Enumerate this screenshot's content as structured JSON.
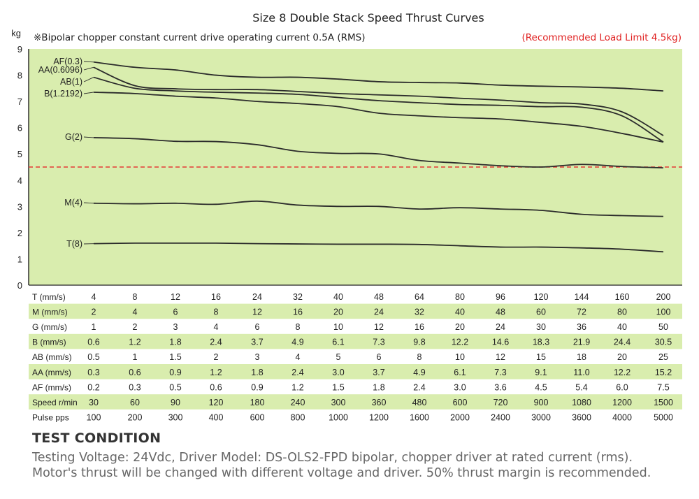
{
  "chart_data": {
    "type": "line",
    "title": "Size 8 Double Stack Speed Thrust Curves",
    "subtitle": "※Bipolar chopper constant current drive operating current 0.5A (RMS)",
    "ylabel": "kg",
    "ylim": [
      0,
      9
    ],
    "yticks": [
      0,
      1,
      2,
      3,
      4,
      5,
      6,
      7,
      8,
      9
    ],
    "recommended_limit": {
      "label": "(Recommended Load Limit 4.5kg)",
      "value": 4.5,
      "color": "#e53935"
    },
    "colors": {
      "plot_background": "#d9edae",
      "table_band": "#d9edae",
      "line": "#2b2b2b",
      "axis": "#222222"
    },
    "series": [
      {
        "name": "AF(0.3)",
        "values": [
          8.5,
          8.3,
          8.2,
          8.0,
          7.92,
          7.92,
          7.85,
          7.75,
          7.72,
          7.7,
          7.62,
          7.58,
          7.55,
          7.5,
          7.4
        ]
      },
      {
        "name": "AA(0.6096)",
        "values": [
          8.3,
          7.6,
          7.48,
          7.45,
          7.45,
          7.38,
          7.3,
          7.25,
          7.2,
          7.12,
          7.05,
          6.95,
          6.9,
          6.6,
          5.7
        ]
      },
      {
        "name": "AB(1)",
        "values": [
          7.92,
          7.5,
          7.4,
          7.35,
          7.32,
          7.27,
          7.15,
          7.03,
          6.95,
          6.88,
          6.85,
          6.8,
          6.78,
          6.45,
          5.45
        ]
      },
      {
        "name": "B(1.2192)",
        "values": [
          7.35,
          7.3,
          7.2,
          7.13,
          7.0,
          6.92,
          6.8,
          6.55,
          6.45,
          6.38,
          6.33,
          6.2,
          6.05,
          5.78,
          5.45
        ]
      },
      {
        "name": "G(2)",
        "values": [
          5.62,
          5.58,
          5.48,
          5.47,
          5.35,
          5.1,
          5.02,
          5.0,
          4.75,
          4.65,
          4.55,
          4.5,
          4.6,
          4.52,
          4.47
        ]
      },
      {
        "name": "M(4)",
        "values": [
          3.12,
          3.1,
          3.12,
          3.08,
          3.2,
          3.05,
          3.0,
          3.0,
          2.9,
          2.95,
          2.9,
          2.85,
          2.7,
          2.65,
          2.62
        ]
      },
      {
        "name": "T(8)",
        "values": [
          1.58,
          1.6,
          1.6,
          1.6,
          1.58,
          1.57,
          1.56,
          1.56,
          1.55,
          1.5,
          1.45,
          1.45,
          1.42,
          1.37,
          1.27
        ]
      }
    ],
    "table": {
      "rows": [
        {
          "label": "T (mm/s)",
          "values": [
            "4",
            "8",
            "12",
            "16",
            "24",
            "32",
            "40",
            "48",
            "64",
            "80",
            "96",
            "120",
            "144",
            "160",
            "200"
          ]
        },
        {
          "label": "M (mm/s)",
          "values": [
            "2",
            "4",
            "6",
            "8",
            "12",
            "16",
            "20",
            "24",
            "32",
            "40",
            "48",
            "60",
            "72",
            "80",
            "100"
          ]
        },
        {
          "label": "G (mm/s)",
          "values": [
            "1",
            "2",
            "3",
            "4",
            "6",
            "8",
            "10",
            "12",
            "16",
            "20",
            "24",
            "30",
            "36",
            "40",
            "50"
          ]
        },
        {
          "label": "B (mm/s)",
          "values": [
            "0.6",
            "1.2",
            "1.8",
            "2.4",
            "3.7",
            "4.9",
            "6.1",
            "7.3",
            "9.8",
            "12.2",
            "14.6",
            "18.3",
            "21.9",
            "24.4",
            "30.5"
          ]
        },
        {
          "label": "AB (mm/s)",
          "values": [
            "0.5",
            "1",
            "1.5",
            "2",
            "3",
            "4",
            "5",
            "6",
            "8",
            "10",
            "12",
            "15",
            "18",
            "20",
            "25"
          ]
        },
        {
          "label": "AA (mm/s)",
          "values": [
            "0.3",
            "0.6",
            "0.9",
            "1.2",
            "1.8",
            "2.4",
            "3.0",
            "3.7",
            "4.9",
            "6.1",
            "7.3",
            "9.1",
            "11.0",
            "12.2",
            "15.2"
          ]
        },
        {
          "label": "AF (mm/s)",
          "values": [
            "0.2",
            "0.3",
            "0.5",
            "0.6",
            "0.9",
            "1.2",
            "1.5",
            "1.8",
            "2.4",
            "3.0",
            "3.6",
            "4.5",
            "5.4",
            "6.0",
            "7.5"
          ]
        },
        {
          "label": "Speed  r/min",
          "values": [
            "30",
            "60",
            "90",
            "120",
            "180",
            "240",
            "300",
            "360",
            "480",
            "600",
            "720",
            "900",
            "1080",
            "1200",
            "1500"
          ]
        },
        {
          "label": "Pulse   pps",
          "values": [
            "100",
            "200",
            "300",
            "400",
            "600",
            "800",
            "1000",
            "1200",
            "1600",
            "2000",
            "2400",
            "3000",
            "3600",
            "4000",
            "5000"
          ]
        }
      ]
    }
  },
  "test_condition": {
    "heading": "TEST CONDITION",
    "line1": "Testing Voltage: 24Vdc, Driver Model: DS-OLS2-FPD bipolar, chopper driver at rated current (rms).",
    "line2": "Motor's thrust will be changed with different voltage and driver. 50% thrust margin is recommended."
  }
}
